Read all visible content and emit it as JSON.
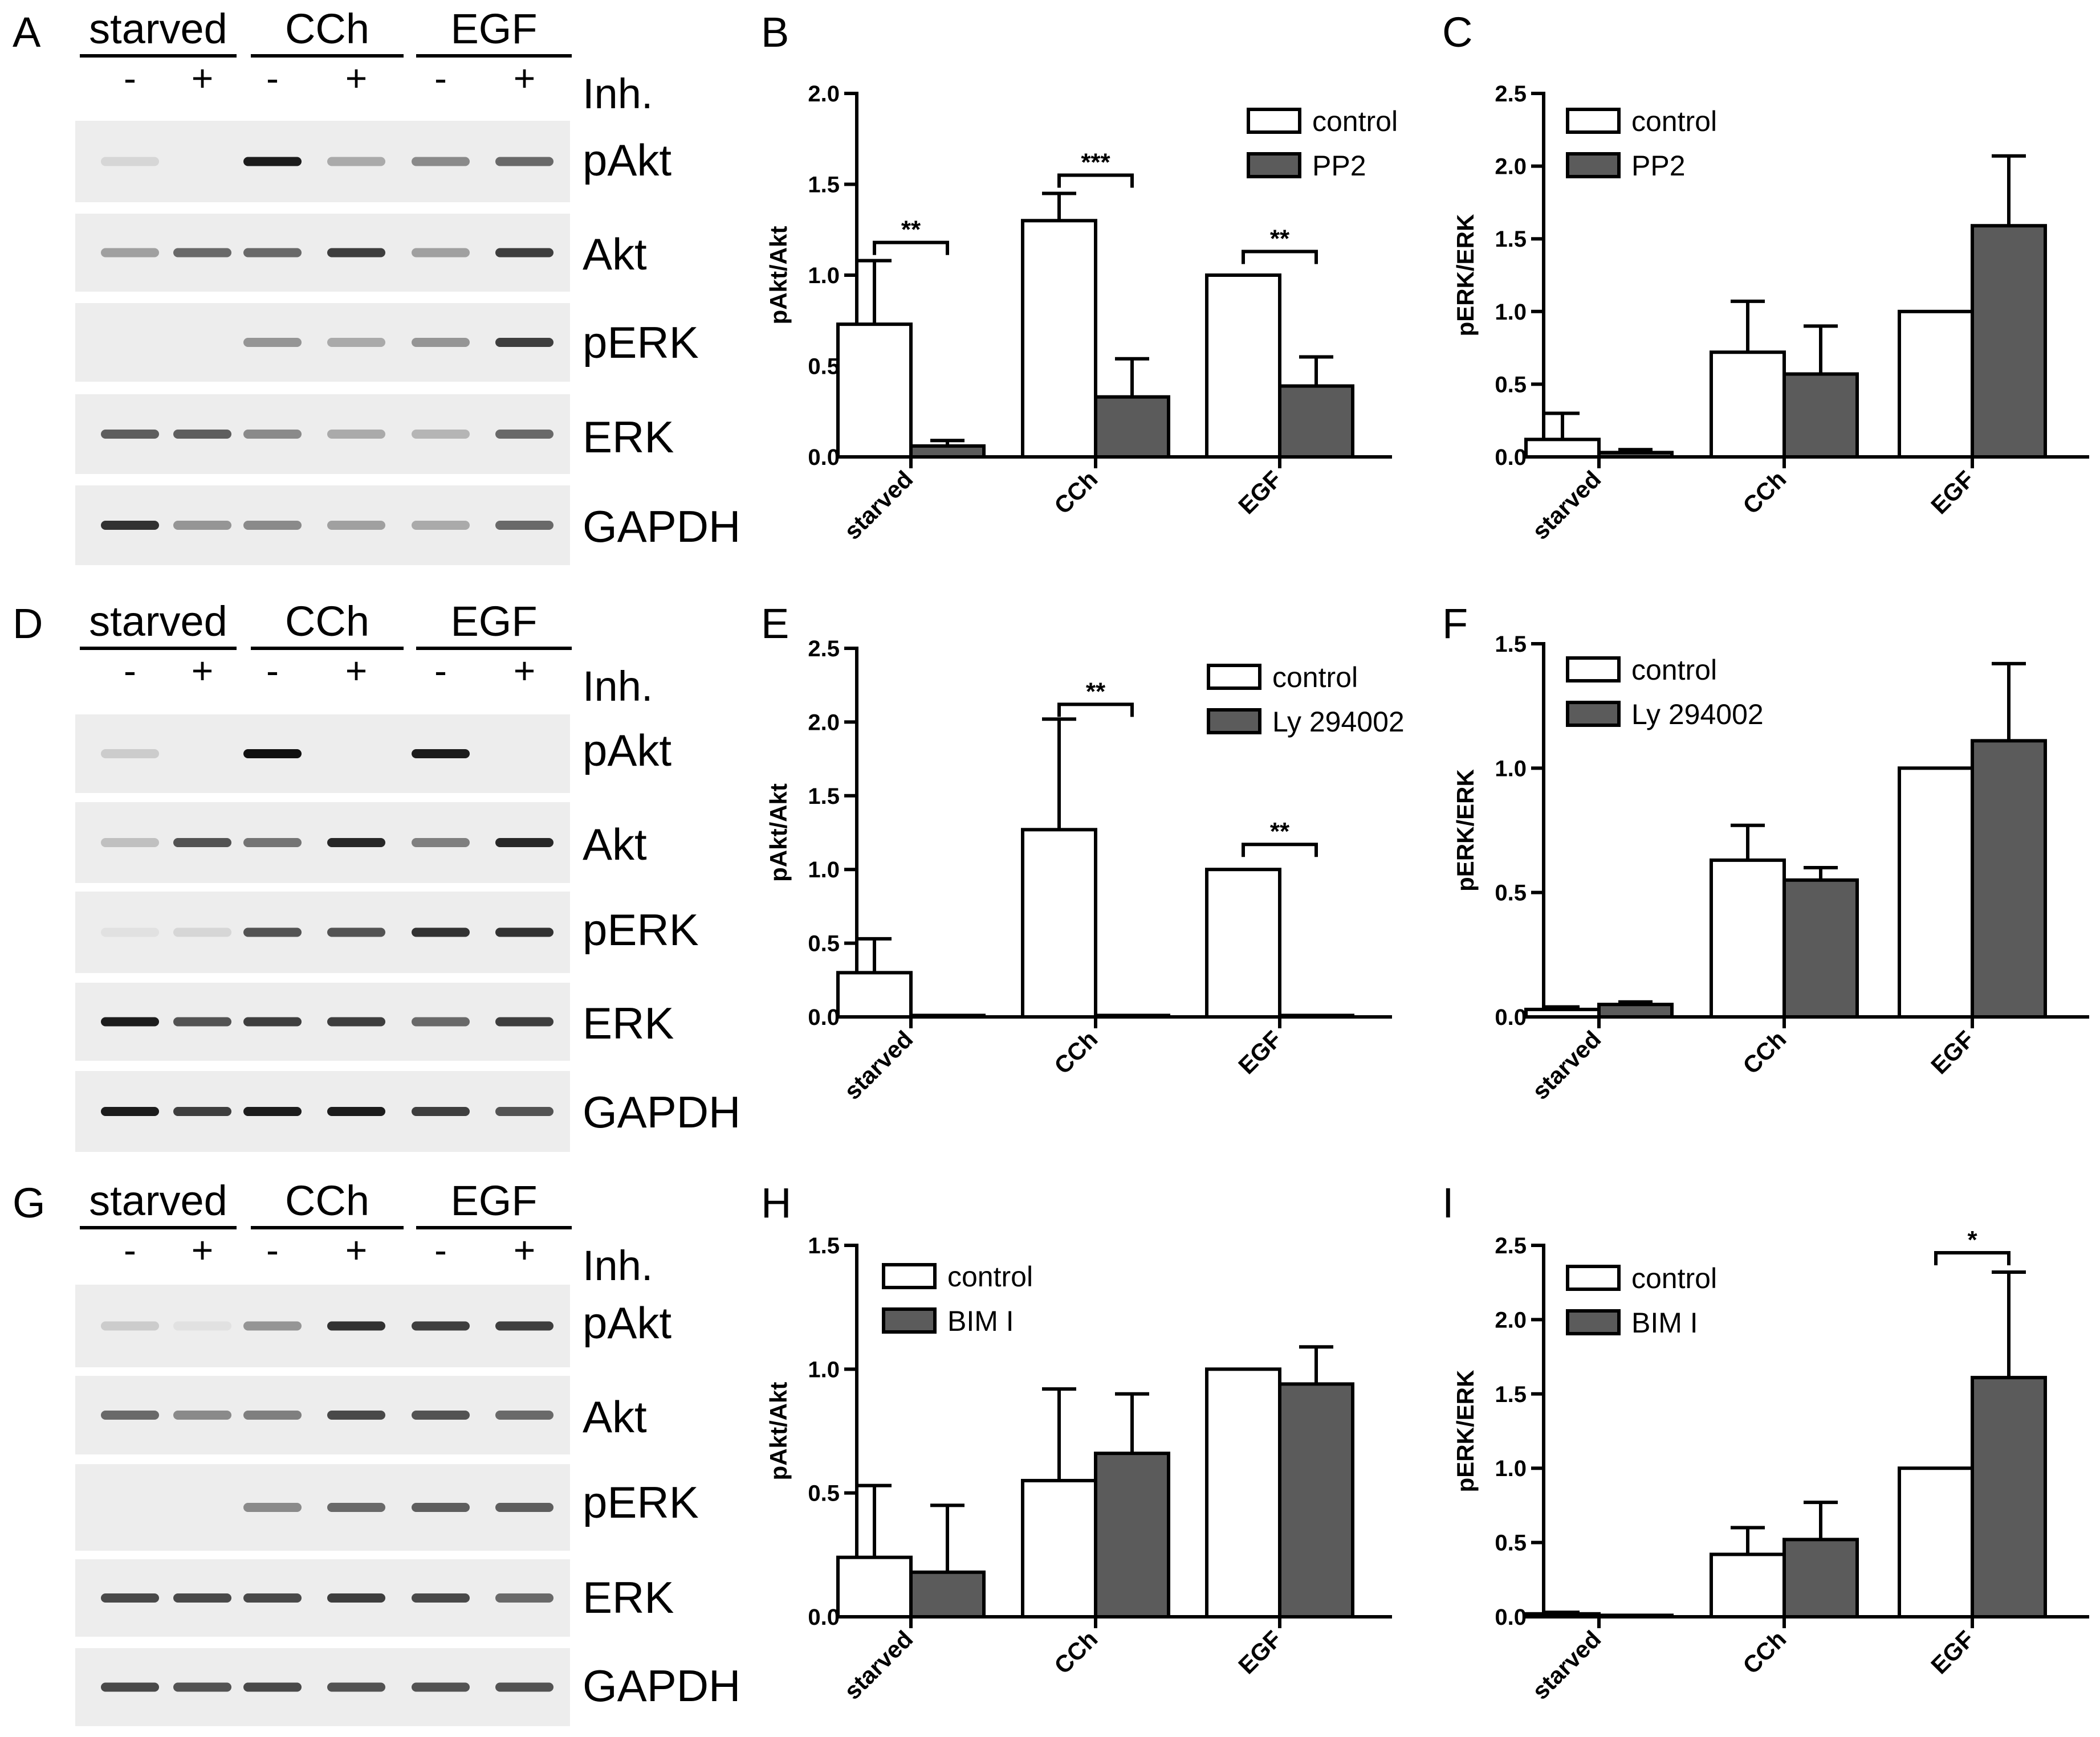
{
  "colors": {
    "control_fill": "#ffffff",
    "inhibitor_fill": "#5b5b5b",
    "stroke": "#000000",
    "blot_bg": "#ededed",
    "band": "#111111"
  },
  "blots": [
    {
      "letter": "A",
      "groups": [
        "starved",
        "CCh",
        "EGF"
      ],
      "signs": [
        "-",
        "+",
        "-",
        "+",
        "-",
        "+"
      ],
      "inh_label": "Inh.",
      "rows": [
        {
          "label": "pAkt",
          "bands": [
            0.1,
            0.0,
            0.95,
            0.3,
            0.45,
            0.6
          ]
        },
        {
          "label": "Akt",
          "bands": [
            0.35,
            0.6,
            0.6,
            0.8,
            0.35,
            0.8
          ]
        },
        {
          "label": "pERK",
          "bands": [
            0.0,
            0.0,
            0.4,
            0.3,
            0.4,
            0.8
          ]
        },
        {
          "label": "ERK",
          "bands": [
            0.65,
            0.65,
            0.45,
            0.3,
            0.25,
            0.6
          ]
        },
        {
          "label": "GAPDH",
          "bands": [
            0.85,
            0.4,
            0.45,
            0.35,
            0.3,
            0.6
          ]
        }
      ]
    },
    {
      "letter": "D",
      "groups": [
        "starved",
        "CCh",
        "EGF"
      ],
      "signs": [
        "-",
        "+",
        "-",
        "+",
        "-",
        "+"
      ],
      "inh_label": "Inh.",
      "rows": [
        {
          "label": "pAkt",
          "bands": [
            0.15,
            0.0,
            1.0,
            0.0,
            0.95,
            0.0
          ]
        },
        {
          "label": "Akt",
          "bands": [
            0.2,
            0.7,
            0.55,
            0.9,
            0.5,
            0.9
          ]
        },
        {
          "label": "pERK",
          "bands": [
            0.05,
            0.1,
            0.7,
            0.7,
            0.85,
            0.85
          ]
        },
        {
          "label": "ERK",
          "bands": [
            0.95,
            0.7,
            0.8,
            0.8,
            0.6,
            0.8
          ]
        },
        {
          "label": "GAPDH",
          "bands": [
            0.95,
            0.8,
            0.95,
            0.95,
            0.8,
            0.7
          ]
        }
      ]
    },
    {
      "letter": "G",
      "groups": [
        "starved",
        "CCh",
        "EGF"
      ],
      "signs": [
        "-",
        "+",
        "-",
        "+",
        "-",
        "+"
      ],
      "inh_label": "Inh.",
      "rows": [
        {
          "label": "pAkt",
          "bands": [
            0.15,
            0.05,
            0.4,
            0.85,
            0.8,
            0.8
          ]
        },
        {
          "label": "Akt",
          "bands": [
            0.6,
            0.45,
            0.5,
            0.75,
            0.7,
            0.6
          ]
        },
        {
          "label": "pERK",
          "bands": [
            0.0,
            0.0,
            0.45,
            0.6,
            0.65,
            0.65
          ]
        },
        {
          "label": "ERK",
          "bands": [
            0.75,
            0.75,
            0.75,
            0.8,
            0.75,
            0.6
          ]
        },
        {
          "label": "GAPDH",
          "bands": [
            0.75,
            0.7,
            0.75,
            0.7,
            0.7,
            0.7
          ]
        }
      ]
    }
  ],
  "chart_data": [
    {
      "letter": "B",
      "type": "bar",
      "title": "",
      "xlabel": "",
      "ylabel": "pAkt/Akt",
      "ylim": [
        0,
        2.0
      ],
      "ytick_labels": [
        "0.0",
        "0.5",
        "1.0",
        "1.5",
        "2.0"
      ],
      "categories": [
        "starved",
        "CCh",
        "EGF"
      ],
      "legend_position": "top-right",
      "series": [
        {
          "name": "control",
          "values": [
            0.73,
            1.3,
            1.0
          ],
          "errors": [
            0.35,
            0.15,
            0.0
          ]
        },
        {
          "name": "PP2",
          "values": [
            0.06,
            0.33,
            0.39
          ],
          "errors": [
            0.03,
            0.21,
            0.16
          ]
        }
      ],
      "significance": [
        {
          "category": 0,
          "label": "**",
          "y": 1.18
        },
        {
          "category": 1,
          "label": "***",
          "y": 1.55
        },
        {
          "category": 2,
          "label": "**",
          "y": 1.13
        }
      ]
    },
    {
      "letter": "C",
      "type": "bar",
      "title": "",
      "xlabel": "",
      "ylabel": "pERK/ERK",
      "ylim": [
        0,
        2.5
      ],
      "ytick_labels": [
        "0.0",
        "0.5",
        "1.0",
        "1.5",
        "2.0",
        "2.5"
      ],
      "categories": [
        "starved",
        "CCh",
        "EGF"
      ],
      "legend_position": "top-left",
      "series": [
        {
          "name": "control",
          "values": [
            0.12,
            0.72,
            1.0
          ],
          "errors": [
            0.18,
            0.35,
            0.0
          ]
        },
        {
          "name": "PP2",
          "values": [
            0.03,
            0.57,
            1.59
          ],
          "errors": [
            0.02,
            0.33,
            0.48
          ]
        }
      ],
      "significance": []
    },
    {
      "letter": "E",
      "type": "bar",
      "title": "",
      "xlabel": "",
      "ylabel": "pAkt/Akt",
      "ylim": [
        0,
        2.5
      ],
      "ytick_labels": [
        "0.0",
        "0.5",
        "1.0",
        "1.5",
        "2.0",
        "2.5"
      ],
      "categories": [
        "starved",
        "CCh",
        "EGF"
      ],
      "legend_position": "top-right",
      "series": [
        {
          "name": "control",
          "values": [
            0.3,
            1.27,
            1.0
          ],
          "errors": [
            0.23,
            0.75,
            0.0
          ]
        },
        {
          "name": "Ly 294002",
          "values": [
            0.01,
            0.01,
            0.01
          ],
          "errors": [
            0.0,
            0.0,
            0.0
          ]
        }
      ],
      "significance": [
        {
          "category": 1,
          "label": "**",
          "y": 2.12
        },
        {
          "category": 2,
          "label": "**",
          "y": 1.17
        }
      ]
    },
    {
      "letter": "F",
      "type": "bar",
      "title": "",
      "xlabel": "",
      "ylabel": "pERK/ERK",
      "ylim": [
        0,
        1.5
      ],
      "ytick_labels": [
        "0.0",
        "0.5",
        "1.0",
        "1.5"
      ],
      "categories": [
        "starved",
        "CCh",
        "EGF"
      ],
      "legend_position": "top-left",
      "series": [
        {
          "name": "control",
          "values": [
            0.03,
            0.63,
            1.0
          ],
          "errors": [
            0.01,
            0.14,
            0.0
          ]
        },
        {
          "name": "Ly 294002",
          "values": [
            0.05,
            0.55,
            1.11
          ],
          "errors": [
            0.01,
            0.05,
            0.31
          ]
        }
      ],
      "significance": []
    },
    {
      "letter": "H",
      "type": "bar",
      "title": "",
      "xlabel": "",
      "ylabel": "pAkt/Akt",
      "ylim": [
        0,
        1.5
      ],
      "ytick_labels": [
        "0.0",
        "0.5",
        "1.0",
        "1.5"
      ],
      "categories": [
        "starved",
        "CCh",
        "EGF"
      ],
      "legend_position": "top-left",
      "series": [
        {
          "name": "control",
          "values": [
            0.24,
            0.55,
            1.0
          ],
          "errors": [
            0.29,
            0.37,
            0.0
          ]
        },
        {
          "name": "BIM I",
          "values": [
            0.18,
            0.66,
            0.94
          ],
          "errors": [
            0.27,
            0.24,
            0.15
          ]
        }
      ],
      "significance": []
    },
    {
      "letter": "I",
      "type": "bar",
      "title": "",
      "xlabel": "",
      "ylabel": "pERK/ERK",
      "ylim": [
        0,
        2.5
      ],
      "ytick_labels": [
        "0.0",
        "0.5",
        "1.0",
        "1.5",
        "2.0",
        "2.5"
      ],
      "categories": [
        "starved",
        "CCh",
        "EGF"
      ],
      "legend_position": "top-left",
      "series": [
        {
          "name": "control",
          "values": [
            0.02,
            0.42,
            1.0
          ],
          "errors": [
            0.01,
            0.18,
            0.0
          ]
        },
        {
          "name": "BIM I",
          "values": [
            0.01,
            0.52,
            1.61
          ],
          "errors": [
            0.0,
            0.25,
            0.71
          ]
        }
      ],
      "significance": [
        {
          "category": 2,
          "label": "*",
          "y": 2.45
        }
      ]
    }
  ]
}
